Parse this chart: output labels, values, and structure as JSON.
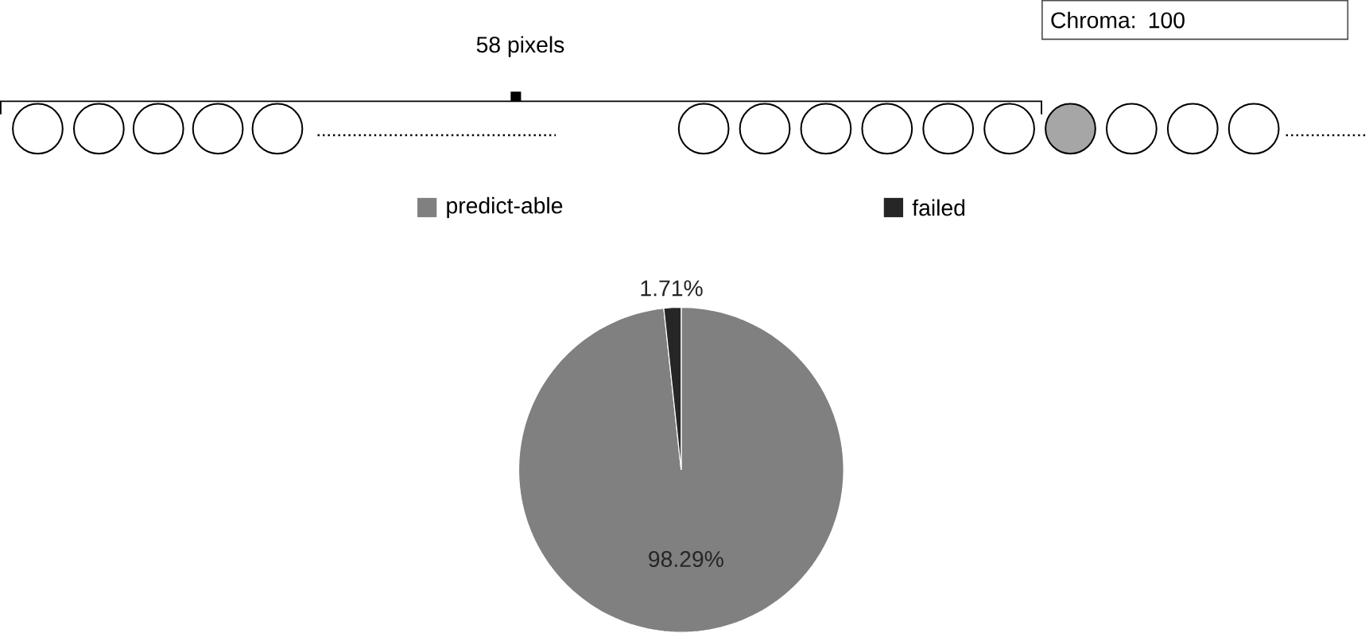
{
  "chart_data": {
    "type": "pie",
    "categories": [
      "predict-able",
      "failed"
    ],
    "values": [
      98.29,
      1.71
    ],
    "colors": [
      "#808080",
      "#262626"
    ],
    "value_labels": [
      "98.29%",
      "1.71%"
    ],
    "legend": "top",
    "annotations": [
      "58 pixels",
      "Chroma: 100"
    ]
  }
}
